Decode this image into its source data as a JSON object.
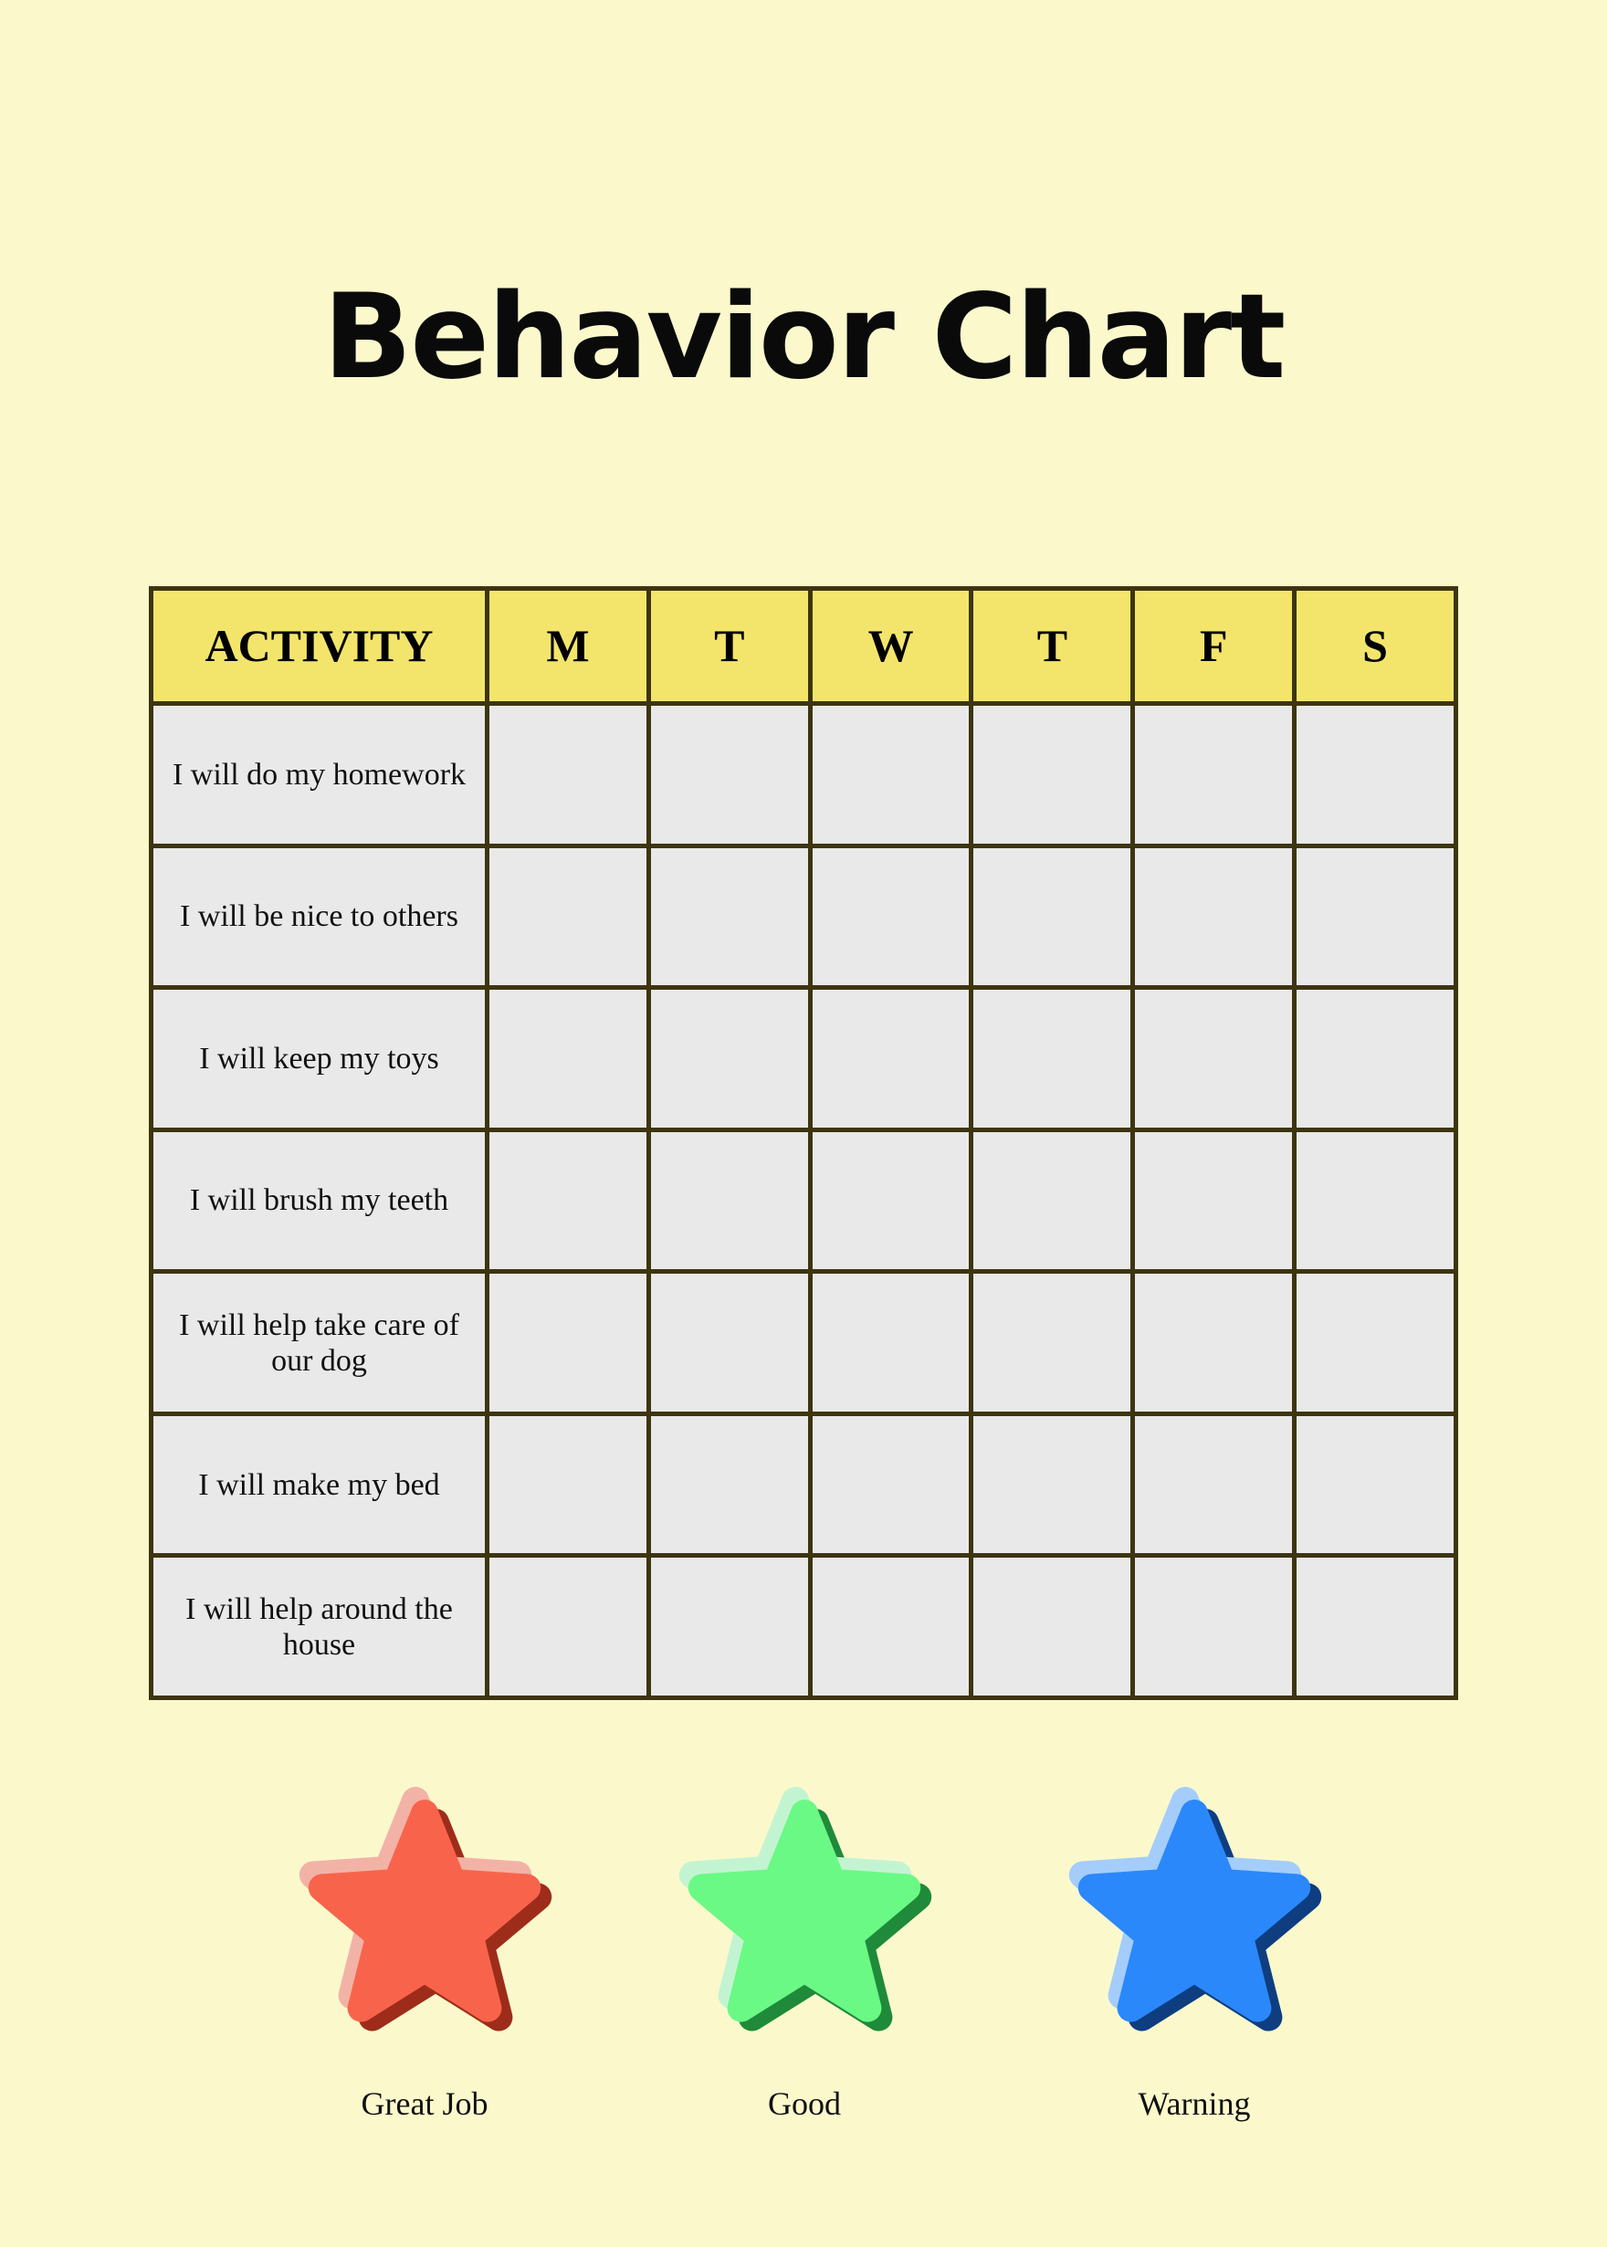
{
  "title": "Behavior Chart",
  "table": {
    "headers": [
      "ACTIVITY",
      "M",
      "T",
      "W",
      "T",
      "F",
      "S"
    ],
    "activities": [
      "I will do my homework",
      "I will be nice to others",
      "I will keep my toys",
      "I will brush my teeth",
      "I will help take care of our dog",
      "I will make my bed",
      "I will help around the house"
    ]
  },
  "legend": [
    {
      "label": "Great Job",
      "icon": "star-icon",
      "color": "#f8644b",
      "light": "#f2b3a6",
      "dark": "#9e2c1a"
    },
    {
      "label": "Good",
      "icon": "star-icon",
      "color": "#6af985",
      "light": "#c3f4d2",
      "dark": "#1f8a3a"
    },
    {
      "label": "Warning",
      "icon": "star-icon",
      "color": "#2a88fb",
      "light": "#a4cdfb",
      "dark": "#0e3e80"
    }
  ]
}
